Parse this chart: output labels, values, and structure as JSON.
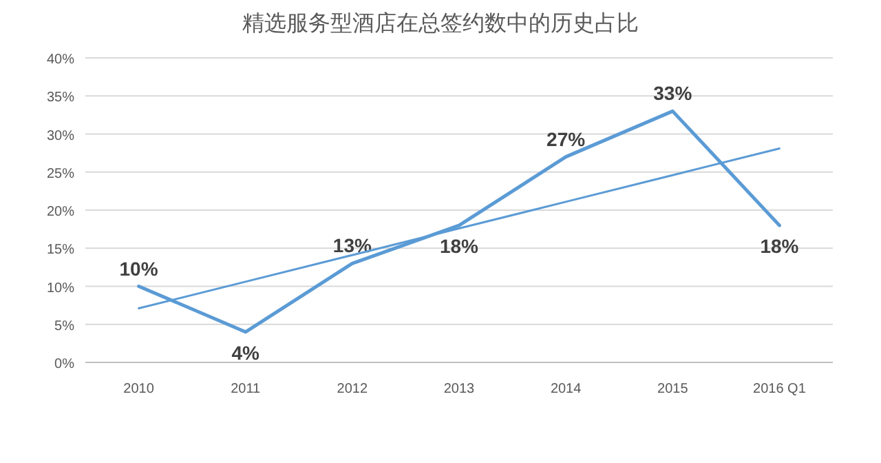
{
  "chart_data": {
    "type": "line",
    "title": "精选服务型酒店在总签约数中的历史占比",
    "categories": [
      "2010",
      "2011",
      "2012",
      "2013",
      "2014",
      "2015",
      "2016 Q1"
    ],
    "series": [
      {
        "color": "#5b9bd5",
        "values": [
          10,
          4,
          13,
          18,
          27,
          33,
          18
        ],
        "value_labels": [
          "10%",
          "4%",
          "13%",
          "18%",
          "27%",
          "33%",
          "18%"
        ]
      },
      {
        "color": "#5b9bd5",
        "values": [
          7.1,
          10.6,
          14.1,
          17.6,
          21.1,
          24.6,
          28.1
        ]
      }
    ],
    "ylim": [
      0,
      40
    ],
    "yticks": [
      {
        "value": 0,
        "label": "0%"
      },
      {
        "value": 5,
        "label": "5%"
      },
      {
        "value": 10,
        "label": "10%"
      },
      {
        "value": 15,
        "label": "15%"
      },
      {
        "value": 20,
        "label": "20%"
      },
      {
        "value": 25,
        "label": "25%"
      },
      {
        "value": 30,
        "label": "30%"
      },
      {
        "value": 35,
        "label": "35%"
      },
      {
        "value": 40,
        "label": "40%"
      }
    ],
    "grid": "y",
    "marker": "none"
  }
}
